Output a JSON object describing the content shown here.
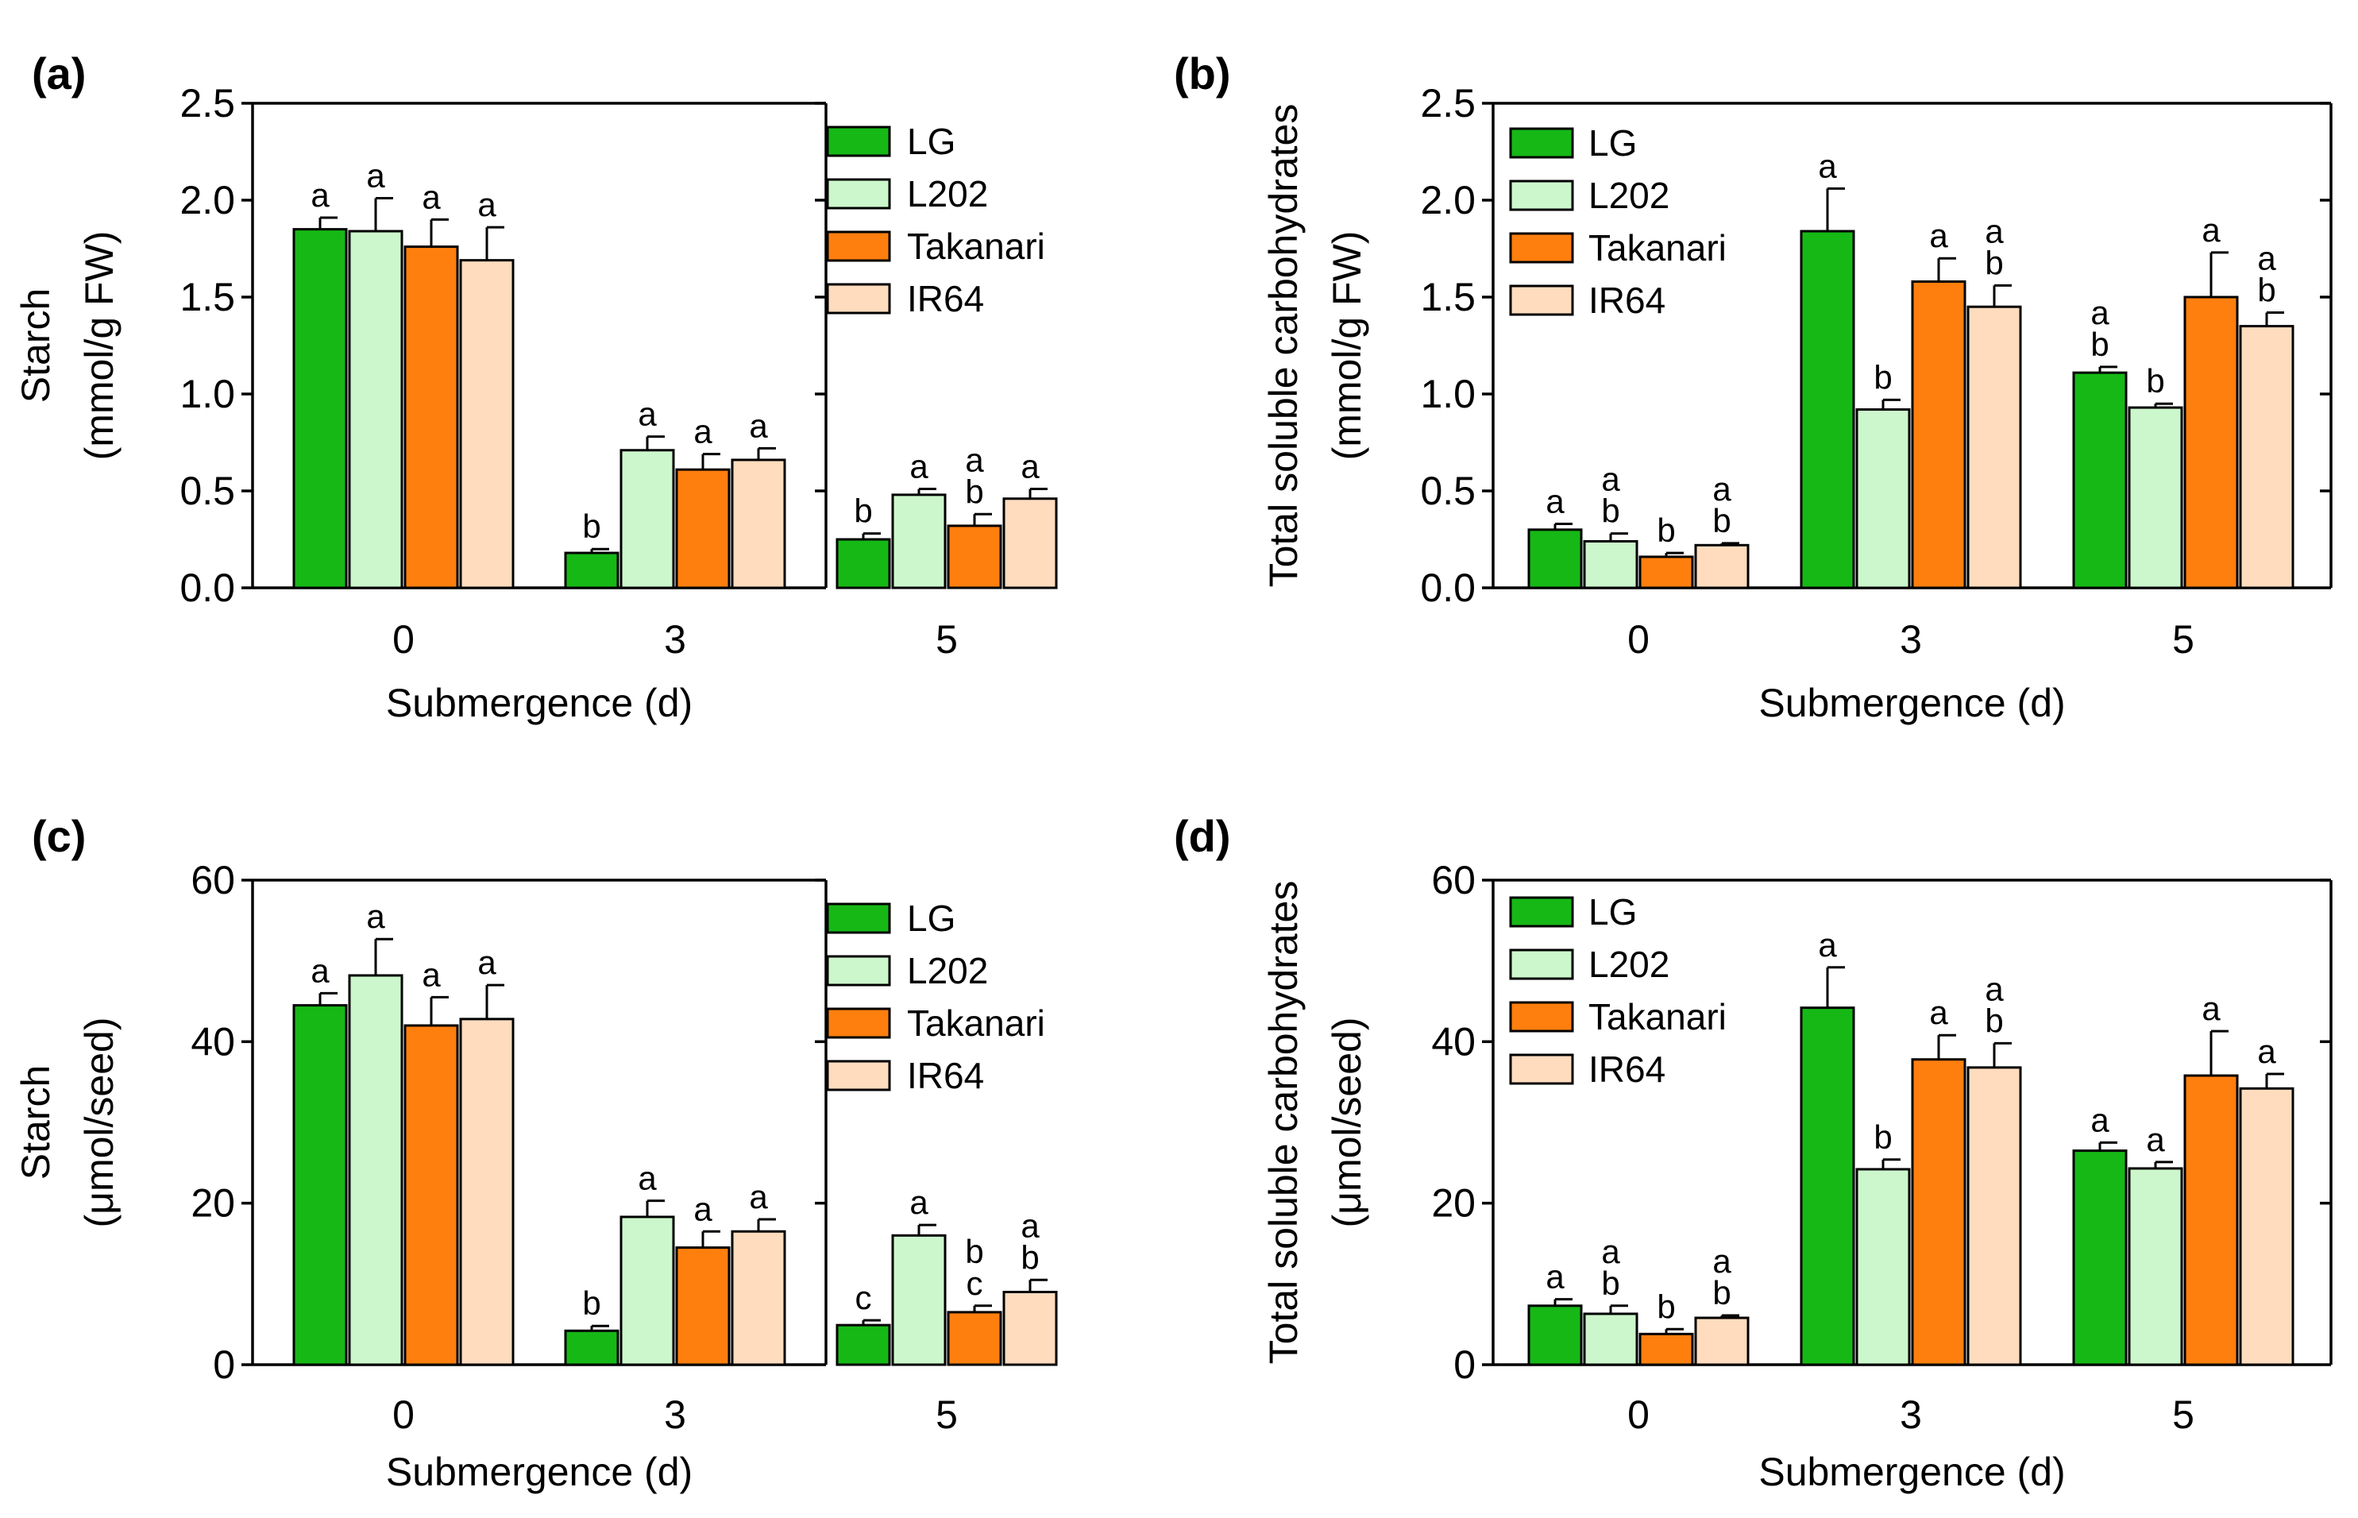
{
  "colors": {
    "LG": "#16b816",
    "L202": "#ccf7cc",
    "Takanari": "#ff7f0e",
    "IR64": "#ffdcbe",
    "axis": "#000000"
  },
  "chart_data": [
    {
      "id": "a",
      "type": "bar",
      "panel_label": "(a)",
      "ylabel_lines": [
        "Starch",
        "(mmol/g FW)"
      ],
      "xlabel": "Submergence (d)",
      "categories": [
        "0",
        "3",
        "5"
      ],
      "ylim": [
        0,
        2.5
      ],
      "yticks": [
        "0.0",
        "0.5",
        "1.0",
        "1.5",
        "2.0",
        "2.5"
      ],
      "ytick_values": [
        0,
        0.5,
        1.0,
        1.5,
        2.0,
        2.5
      ],
      "legend": "top-right",
      "series": [
        {
          "name": "LG",
          "values": [
            1.85,
            0.18,
            0.25
          ],
          "errors": [
            0.06,
            0.02,
            0.03
          ],
          "letters": [
            [
              "a"
            ],
            [
              "b"
            ],
            [
              "b"
            ]
          ]
        },
        {
          "name": "L202",
          "values": [
            1.84,
            0.71,
            0.48
          ],
          "errors": [
            0.17,
            0.07,
            0.03
          ],
          "letters": [
            [
              "a"
            ],
            [
              "a"
            ],
            [
              "a"
            ]
          ]
        },
        {
          "name": "Takanari",
          "values": [
            1.76,
            0.61,
            0.32
          ],
          "errors": [
            0.14,
            0.08,
            0.06
          ],
          "letters": [
            [
              "a"
            ],
            [
              "a"
            ],
            [
              "a",
              "b"
            ]
          ]
        },
        {
          "name": "IR64",
          "values": [
            1.69,
            0.66,
            0.46
          ],
          "errors": [
            0.17,
            0.06,
            0.05
          ],
          "letters": [
            [
              "a"
            ],
            [
              "a"
            ],
            [
              "a"
            ]
          ]
        }
      ]
    },
    {
      "id": "b",
      "type": "bar",
      "panel_label": "(b)",
      "ylabel_lines": [
        "Total soluble carbohydrates",
        "(mmol/g FW)"
      ],
      "xlabel": "Submergence (d)",
      "categories": [
        "0",
        "3",
        "5"
      ],
      "ylim": [
        0,
        2.5
      ],
      "yticks": [
        "0.0",
        "0.5",
        "1.0",
        "1.5",
        "2.0",
        "2.5"
      ],
      "ytick_values": [
        0,
        0.5,
        1.0,
        1.5,
        2.0,
        2.5
      ],
      "legend": "top-left",
      "series": [
        {
          "name": "LG",
          "values": [
            0.3,
            1.84,
            1.11
          ],
          "errors": [
            0.03,
            0.22,
            0.03
          ],
          "letters": [
            [
              "a"
            ],
            [
              "a"
            ],
            [
              "a",
              "b"
            ]
          ]
        },
        {
          "name": "L202",
          "values": [
            0.24,
            0.92,
            0.93
          ],
          "errors": [
            0.04,
            0.05,
            0.02
          ],
          "letters": [
            [
              "a",
              "b"
            ],
            [
              "b"
            ],
            [
              "b"
            ]
          ]
        },
        {
          "name": "Takanari",
          "values": [
            0.16,
            1.58,
            1.5
          ],
          "errors": [
            0.02,
            0.12,
            0.23
          ],
          "letters": [
            [
              "b"
            ],
            [
              "a"
            ],
            [
              "a"
            ]
          ]
        },
        {
          "name": "IR64",
          "values": [
            0.22,
            1.45,
            1.35
          ],
          "errors": [
            0.01,
            0.11,
            0.07
          ],
          "letters": [
            [
              "a",
              "b"
            ],
            [
              "a",
              "b"
            ],
            [
              "a",
              "b"
            ]
          ]
        }
      ]
    },
    {
      "id": "c",
      "type": "bar",
      "panel_label": "(c)",
      "ylabel_lines": [
        "Starch",
        "(μmol/seed)"
      ],
      "xlabel": "Submergence (d)",
      "categories": [
        "0",
        "3",
        "5"
      ],
      "ylim": [
        0,
        60
      ],
      "yticks": [
        "0",
        "20",
        "40",
        "60"
      ],
      "ytick_values": [
        0,
        20,
        40,
        60
      ],
      "legend": "top-right",
      "series": [
        {
          "name": "LG",
          "values": [
            44.5,
            4.2,
            4.9
          ],
          "errors": [
            1.5,
            0.6,
            0.6
          ],
          "letters": [
            [
              "a"
            ],
            [
              "b"
            ],
            [
              "c"
            ]
          ]
        },
        {
          "name": "L202",
          "values": [
            48.2,
            18.3,
            16.0
          ],
          "errors": [
            4.5,
            2.0,
            1.3
          ],
          "letters": [
            [
              "a"
            ],
            [
              "a"
            ],
            [
              "a"
            ]
          ]
        },
        {
          "name": "Takanari",
          "values": [
            42.0,
            14.5,
            6.5
          ],
          "errors": [
            3.5,
            2.0,
            0.8
          ],
          "letters": [
            [
              "a"
            ],
            [
              "a"
            ],
            [
              "b",
              "c"
            ]
          ]
        },
        {
          "name": "IR64",
          "values": [
            42.8,
            16.5,
            9.0
          ],
          "errors": [
            4.2,
            1.5,
            1.5
          ],
          "letters": [
            [
              "a"
            ],
            [
              "a"
            ],
            [
              "a",
              "b"
            ]
          ]
        }
      ]
    },
    {
      "id": "d",
      "type": "bar",
      "panel_label": "(d)",
      "ylabel_lines": [
        "Total soluble carbohydrates",
        "(μmol/seed)"
      ],
      "xlabel": "Submergence (d)",
      "categories": [
        "0",
        "3",
        "5"
      ],
      "ylim": [
        0,
        60
      ],
      "yticks": [
        "0",
        "20",
        "40",
        "60"
      ],
      "ytick_values": [
        0,
        20,
        40,
        60
      ],
      "legend": "top-left",
      "series": [
        {
          "name": "LG",
          "values": [
            7.3,
            44.2,
            26.5
          ],
          "errors": [
            0.8,
            5.0,
            1.0
          ],
          "letters": [
            [
              "a"
            ],
            [
              "a"
            ],
            [
              "a"
            ]
          ]
        },
        {
          "name": "L202",
          "values": [
            6.3,
            24.2,
            24.3
          ],
          "errors": [
            1.0,
            1.2,
            0.8
          ],
          "letters": [
            [
              "a",
              "b"
            ],
            [
              "b"
            ],
            [
              "a"
            ]
          ]
        },
        {
          "name": "Takanari",
          "values": [
            3.8,
            37.8,
            35.8
          ],
          "errors": [
            0.6,
            3.0,
            5.5
          ],
          "letters": [
            [
              "b"
            ],
            [
              "a"
            ],
            [
              "a"
            ]
          ]
        },
        {
          "name": "IR64",
          "values": [
            5.8,
            36.8,
            34.2
          ],
          "errors": [
            0.3,
            3.0,
            1.8
          ],
          "letters": [
            [
              "a",
              "b"
            ],
            [
              "a",
              "b"
            ],
            [
              "a"
            ]
          ]
        }
      ]
    }
  ]
}
